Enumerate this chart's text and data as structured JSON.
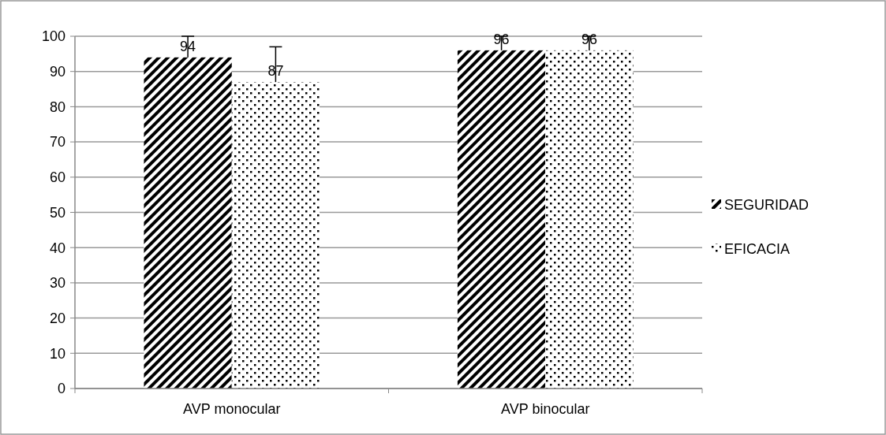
{
  "chart_data": {
    "type": "bar",
    "categories": [
      "AVP monocular",
      "AVP binocular"
    ],
    "series": [
      {
        "name": "SEGURIDAD",
        "color": "#000000",
        "values": [
          94,
          96
        ],
        "errors": [
          [
            94,
            100
          ],
          [
            96,
            100
          ]
        ]
      },
      {
        "name": "EFICACIA",
        "color": "#000000",
        "values": [
          87,
          96
        ],
        "errors": [
          [
            87,
            97
          ],
          [
            96,
            100
          ]
        ]
      }
    ],
    "ylim": [
      0,
      100
    ],
    "yticks": [
      0,
      10,
      20,
      30,
      40,
      50,
      60,
      70,
      80,
      90,
      100
    ],
    "grid": "y",
    "legend": "right",
    "data_labels": true
  }
}
